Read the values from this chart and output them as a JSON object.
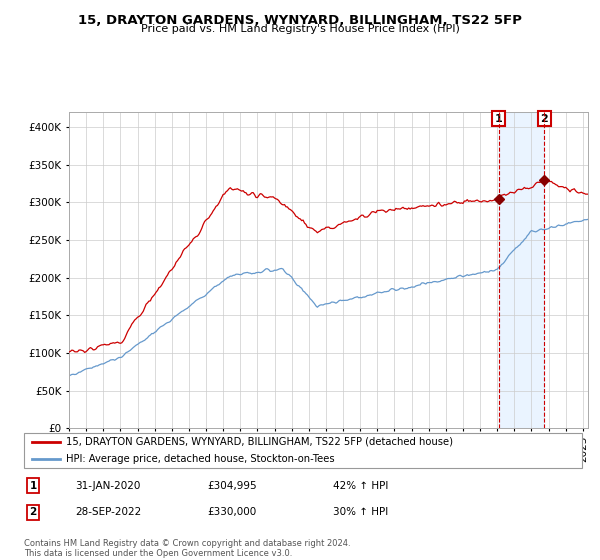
{
  "title": "15, DRAYTON GARDENS, WYNYARD, BILLINGHAM, TS22 5FP",
  "subtitle": "Price paid vs. HM Land Registry's House Price Index (HPI)",
  "background_color": "#ffffff",
  "grid_color": "#cccccc",
  "legend_entry1": "15, DRAYTON GARDENS, WYNYARD, BILLINGHAM, TS22 5FP (detached house)",
  "legend_entry2": "HPI: Average price, detached house, Stockton-on-Tees",
  "sale1_date": "31-JAN-2020",
  "sale1_price": 304995,
  "sale1_year": 2020.083,
  "sale2_date": "28-SEP-2022",
  "sale2_price": 330000,
  "sale2_year": 2022.75,
  "sale1_hpi": "42% ↑ HPI",
  "sale2_hpi": "30% ↑ HPI",
  "footer": "Contains HM Land Registry data © Crown copyright and database right 2024.\nThis data is licensed under the Open Government Licence v3.0.",
  "red_color": "#cc0000",
  "blue_color": "#6699cc",
  "shade_color": "#ddeeff",
  "ylim_min": 0,
  "ylim_max": 420000,
  "yticks": [
    0,
    50000,
    100000,
    150000,
    200000,
    250000,
    300000,
    350000,
    400000
  ],
  "year_start": 1995,
  "year_end": 2025
}
